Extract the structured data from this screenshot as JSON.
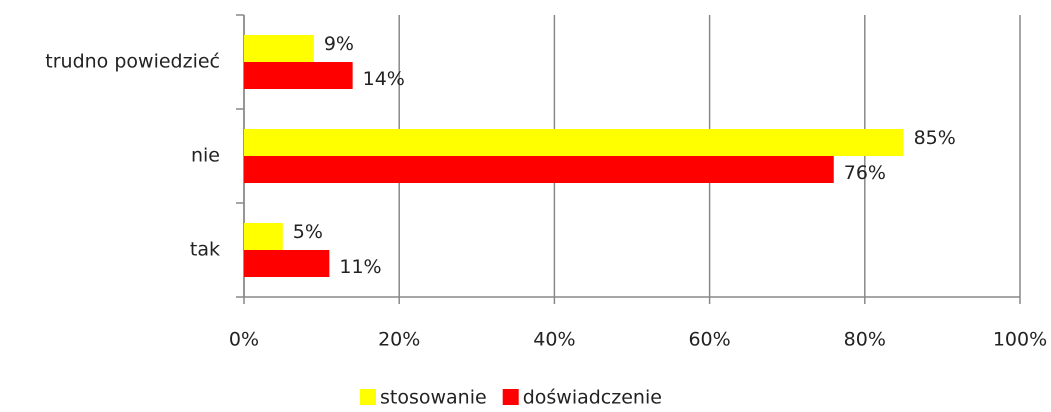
{
  "chart_data": {
    "type": "bar",
    "orientation": "horizontal",
    "categories": [
      "trudno powiedzieć",
      "nie",
      "tak"
    ],
    "series": [
      {
        "name": "stosowanie",
        "color": "#ffff00",
        "values": [
          9,
          85,
          5
        ],
        "value_labels": [
          "9%",
          "85%",
          "5%"
        ]
      },
      {
        "name": "doświadczenie",
        "color": "#ff0000",
        "values": [
          14,
          76,
          11
        ],
        "value_labels": [
          "14%",
          "76%",
          "11%"
        ]
      }
    ],
    "xlim": [
      0,
      100
    ],
    "xticks": [
      {
        "value": 0,
        "label": "0%"
      },
      {
        "value": 20,
        "label": "20%"
      },
      {
        "value": 40,
        "label": "40%"
      },
      {
        "value": 60,
        "label": "60%"
      },
      {
        "value": 80,
        "label": "80%"
      },
      {
        "value": 100,
        "label": "100%"
      }
    ],
    "grid": true,
    "legend": "bottom"
  }
}
